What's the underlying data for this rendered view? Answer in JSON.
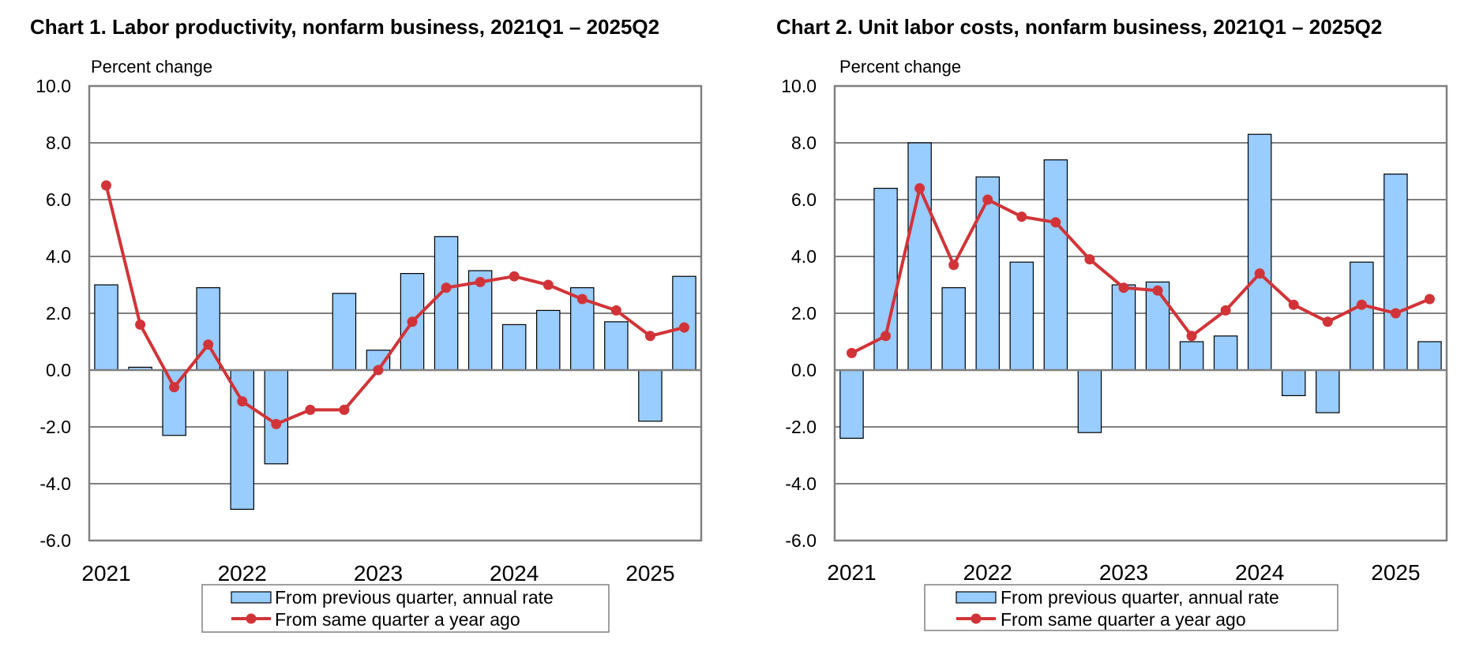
{
  "chart_data": [
    {
      "type": "bar",
      "title": "Chart  1. Labor productivity, nonfarm business, 2021Q1 – 2025Q2",
      "ylabel": "Percent change",
      "ylim": [
        -6,
        10
      ],
      "yticks": [
        "10.0",
        "8.0",
        "6.0",
        "4.0",
        "2.0",
        "0.0",
        "-2.0",
        "-4.0",
        "-6.0"
      ],
      "x_labels": [
        "2021",
        "2022",
        "2023",
        "2024",
        "2025"
      ],
      "categories": [
        "2021Q1",
        "2021Q2",
        "2021Q3",
        "2021Q4",
        "2022Q1",
        "2022Q2",
        "2022Q3",
        "2022Q4",
        "2023Q1",
        "2023Q2",
        "2023Q3",
        "2023Q4",
        "2024Q1",
        "2024Q2",
        "2024Q3",
        "2024Q4",
        "2025Q1",
        "2025Q2"
      ],
      "series": [
        {
          "name": "From previous quarter, annual rate",
          "kind": "bar",
          "values": [
            3.0,
            0.1,
            -2.3,
            2.9,
            -4.9,
            -3.3,
            null,
            2.7,
            0.7,
            3.4,
            4.7,
            3.5,
            1.6,
            2.1,
            2.9,
            1.7,
            -1.8,
            3.3
          ]
        },
        {
          "name": "From same quarter a year ago",
          "kind": "line",
          "values": [
            6.5,
            1.6,
            -0.6,
            0.9,
            -1.1,
            -1.9,
            -1.4,
            -1.4,
            0.0,
            1.7,
            2.9,
            3.1,
            3.3,
            3.0,
            2.5,
            2.1,
            1.2,
            1.5
          ]
        }
      ]
    },
    {
      "type": "bar",
      "title": "Chart  2. Unit labor costs, nonfarm business, 2021Q1 – 2025Q2",
      "ylabel": "Percent change",
      "ylim": [
        -6,
        10
      ],
      "yticks": [
        "10.0",
        "8.0",
        "6.0",
        "4.0",
        "2.0",
        "0.0",
        "-2.0",
        "-4.0",
        "-6.0"
      ],
      "x_labels": [
        "2021",
        "2022",
        "2023",
        "2024",
        "2025"
      ],
      "categories": [
        "2021Q1",
        "2021Q2",
        "2021Q3",
        "2021Q4",
        "2022Q1",
        "2022Q2",
        "2022Q3",
        "2022Q4",
        "2023Q1",
        "2023Q2",
        "2023Q3",
        "2023Q4",
        "2024Q1",
        "2024Q2",
        "2024Q3",
        "2024Q4",
        "2025Q1",
        "2025Q2"
      ],
      "series": [
        {
          "name": "From previous quarter, annual rate",
          "kind": "bar",
          "values": [
            -2.4,
            6.4,
            8.0,
            2.9,
            6.8,
            3.8,
            7.4,
            -2.2,
            3.0,
            3.1,
            1.0,
            1.2,
            8.3,
            -0.9,
            -1.5,
            3.8,
            6.9,
            1.0
          ]
        },
        {
          "name": "From same quarter a year ago",
          "kind": "line",
          "values": [
            0.6,
            1.2,
            6.4,
            3.7,
            6.0,
            5.4,
            5.2,
            3.9,
            2.9,
            2.8,
            1.2,
            2.1,
            3.4,
            2.3,
            1.7,
            2.3,
            2.0,
            2.5
          ]
        }
      ]
    }
  ],
  "colors": {
    "bar_fill": "#99CCFF",
    "bar_stroke": "#000000",
    "line": "#D13438",
    "grid": "#808080",
    "frame": "#808080"
  }
}
